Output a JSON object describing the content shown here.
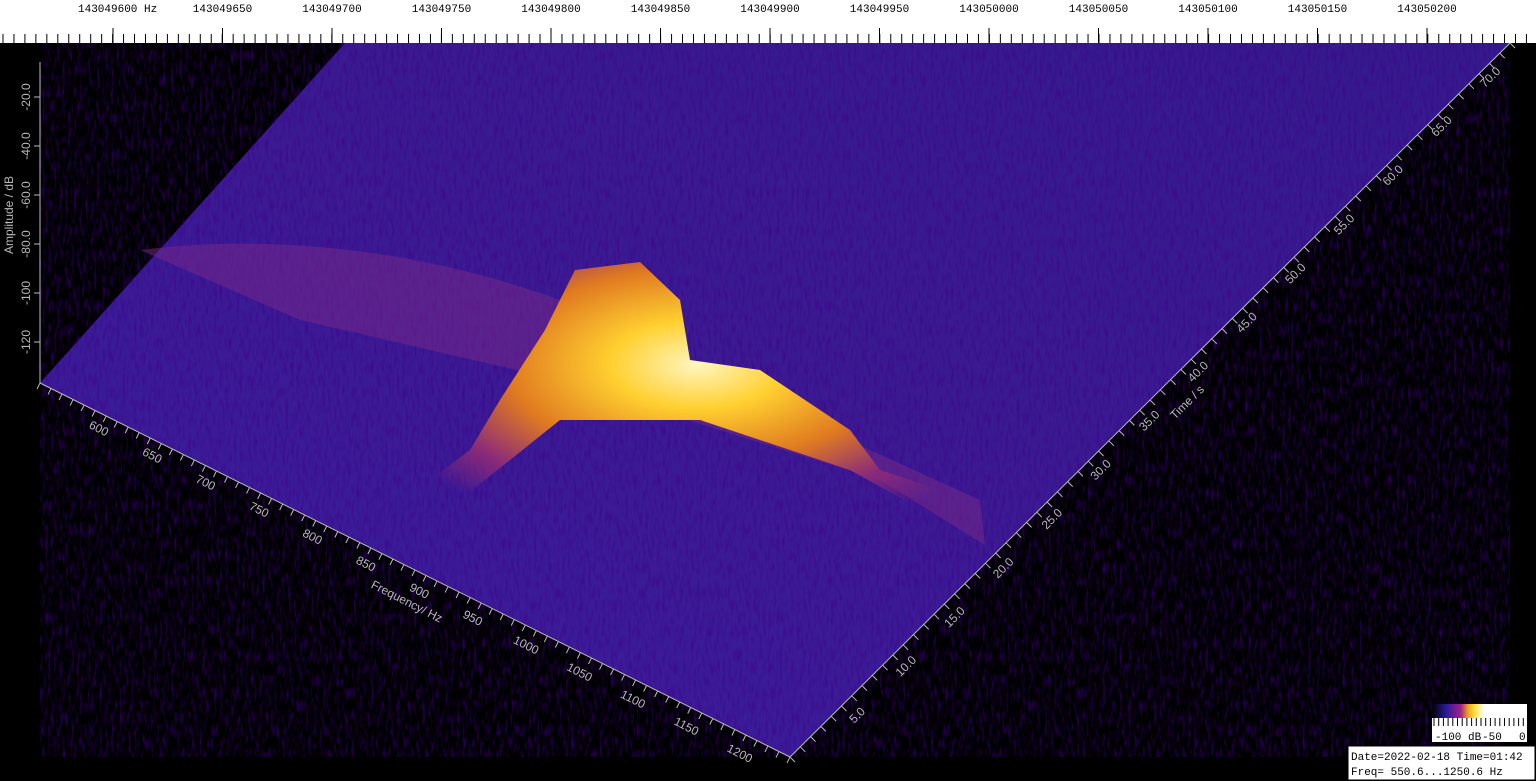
{
  "ruler": {
    "labels": [
      "143049600 Hz",
      "143049650",
      "143049700",
      "143049750",
      "143049800",
      "143049850",
      "143049900",
      "143049950",
      "143050000",
      "143050050",
      "143050100",
      "143050150",
      "143050200"
    ]
  },
  "amplitude_axis": {
    "title": "Amplitude / dB",
    "labels": [
      "-20.0",
      "-40.0",
      "-60.0",
      "-80.0",
      "-100",
      "-120"
    ]
  },
  "frequency_axis": {
    "title": "Frequency/ Hz",
    "labels": [
      "600",
      "650",
      "700",
      "750",
      "800",
      "850",
      "900",
      "950",
      "1000",
      "1050",
      "1100",
      "1150",
      "1200"
    ]
  },
  "time_axis": {
    "title": "Time / s",
    "labels": [
      "5.0",
      "10.0",
      "15.0",
      "20.0",
      "25.0",
      "30.0",
      "35.0",
      "40.0",
      "45.0",
      "50.0",
      "55.0",
      "60.0",
      "65.0",
      "70.0"
    ]
  },
  "colorbar": {
    "labels": [
      "-100 dB",
      "-50",
      "0"
    ]
  },
  "info": {
    "line1": "Date=2022-02-18 Time=01:42",
    "line2": "Freq= 550.6...1250.6 Hz"
  }
}
